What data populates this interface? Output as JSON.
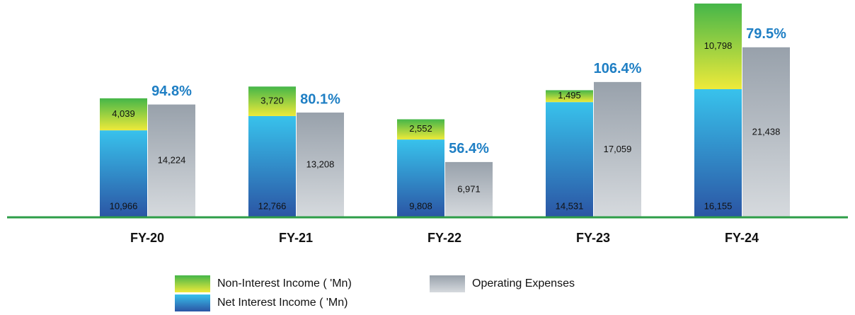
{
  "chart_data": {
    "type": "bar",
    "categories": [
      "FY-20",
      "FY-21",
      "FY-22",
      "FY-23",
      "FY-24"
    ],
    "series": [
      {
        "name": "Net Interest Income ( 'Mn)",
        "color": [
          "#38c2ec",
          "#2b55a4"
        ],
        "values": [
          10966,
          12766,
          9808,
          14531,
          16155
        ],
        "value_labels": [
          "10,966",
          "12,766",
          "9,808",
          "14,531",
          "16,155"
        ]
      },
      {
        "name": "Non-Interest Income ( 'Mn)",
        "color": [
          "#45b649",
          "#eeea3a"
        ],
        "values": [
          4039,
          3720,
          2552,
          1495,
          10798
        ],
        "value_labels": [
          "4,039",
          "3,720",
          "2,552",
          "1,495",
          "10,798"
        ]
      },
      {
        "name": "Operating Expenses",
        "color": [
          "#98a1ab",
          "#d6dade"
        ],
        "values": [
          14224,
          13208,
          6971,
          17059,
          21438
        ],
        "value_labels": [
          "14,224",
          "13,208",
          "6,971",
          "17,059",
          "21,438"
        ]
      }
    ],
    "ratio": {
      "color": "#1f7fc4",
      "values": [
        94.8,
        80.1,
        56.4,
        106.4,
        79.5
      ],
      "value_labels": [
        "94.8%",
        "80.1%",
        "56.4%",
        "106.4%",
        "79.5%"
      ]
    },
    "baseline_color": "#2e9e48"
  }
}
